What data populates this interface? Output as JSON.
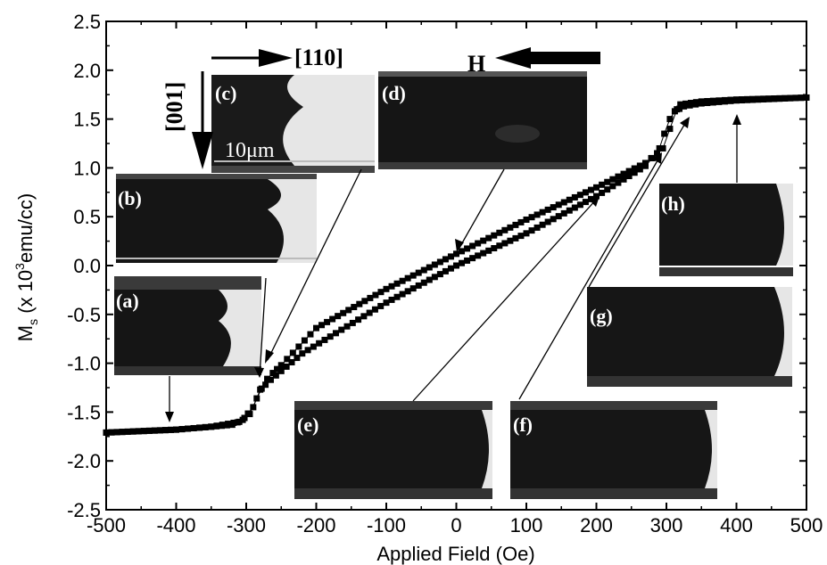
{
  "chart_data": {
    "type": "scatter",
    "xlabel": "Applied Field (Oe)",
    "ylabel_main": "M",
    "ylabel_sub": "s",
    "ylabel_rest": " (x 10",
    "ylabel_sup": "3",
    "ylabel_end": "emu/cc)",
    "xlim": [
      -500,
      500
    ],
    "ylim": [
      -2.5,
      2.5
    ],
    "xticks": [
      -500,
      -400,
      -300,
      -200,
      -100,
      0,
      100,
      200,
      300,
      400,
      500
    ],
    "yticks": [
      -2.5,
      -2.0,
      -1.5,
      -1.0,
      -0.5,
      0.0,
      0.5,
      1.0,
      1.5,
      2.0,
      2.5
    ],
    "xtick_labels": [
      "-500",
      "-400",
      "-300",
      "-200",
      "-100",
      "0",
      "100",
      "200",
      "300",
      "400",
      "500"
    ],
    "ytick_labels": [
      "-2.5",
      "-2.0",
      "-1.5",
      "-1.0",
      "-0.5",
      "0.0",
      "0.5",
      "1.0",
      "1.5",
      "2.0",
      "2.5"
    ],
    "grid": false,
    "marker": "filled-square",
    "series": [
      {
        "branch": "descending",
        "points": [
          [
            500,
            1.72
          ],
          [
            400,
            1.7
          ],
          [
            350,
            1.68
          ],
          [
            320,
            1.65
          ],
          [
            315,
            1.6
          ],
          [
            305,
            1.4
          ],
          [
            295,
            1.2
          ],
          [
            270,
            1.05
          ],
          [
            200,
            0.8
          ],
          [
            100,
            0.47
          ],
          [
            0,
            0.12
          ],
          [
            -100,
            -0.24
          ],
          [
            -200,
            -0.64
          ],
          [
            -250,
            -1.02
          ],
          [
            -262,
            -1.1
          ],
          [
            -270,
            -1.16
          ],
          [
            -278,
            -1.26
          ],
          [
            -285,
            -1.36
          ],
          [
            -295,
            -1.52
          ],
          [
            -310,
            -1.6
          ],
          [
            -350,
            -1.65
          ],
          [
            -400,
            -1.68
          ],
          [
            -500,
            -1.71
          ]
        ]
      },
      {
        "branch": "ascending",
        "points": [
          [
            -500,
            -1.71
          ],
          [
            -400,
            -1.68
          ],
          [
            -350,
            -1.65
          ],
          [
            -320,
            -1.63
          ],
          [
            -305,
            -1.58
          ],
          [
            -290,
            -1.45
          ],
          [
            -280,
            -1.27
          ],
          [
            -265,
            -1.17
          ],
          [
            -220,
            -0.9
          ],
          [
            -100,
            -0.38
          ],
          [
            0,
            0.0
          ],
          [
            100,
            0.33
          ],
          [
            200,
            0.71
          ],
          [
            270,
            1.02
          ],
          [
            280,
            1.1
          ],
          [
            290,
            1.2
          ],
          [
            297,
            1.35
          ],
          [
            305,
            1.5
          ],
          [
            312,
            1.58
          ],
          [
            325,
            1.63
          ],
          [
            350,
            1.66
          ],
          [
            400,
            1.69
          ],
          [
            500,
            1.72
          ]
        ]
      }
    ],
    "annotations": {
      "field_axis_label": "[110]",
      "perp_axis_label": "[001]",
      "field_label": "H",
      "scale_bar": "10μm",
      "panels": [
        "(a)",
        "(b)",
        "(c)",
        "(d)",
        "(e)",
        "(f)",
        "(g)",
        "(h)"
      ]
    }
  }
}
